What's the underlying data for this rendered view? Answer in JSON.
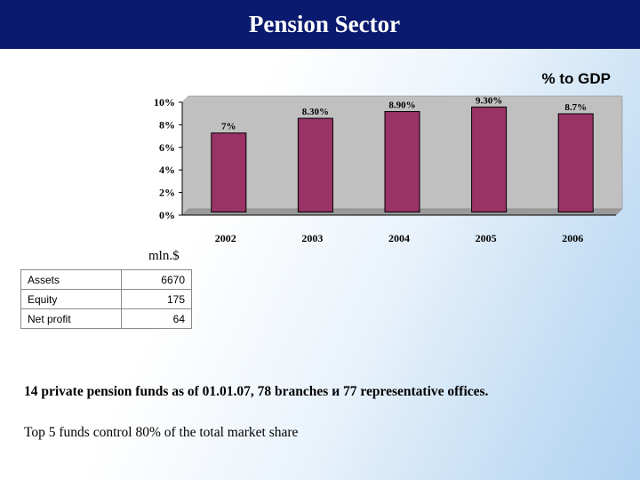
{
  "page": {
    "title": "Pension Sector"
  },
  "chart_data": {
    "type": "bar",
    "title": "% to GDP",
    "categories": [
      "2002",
      "2003",
      "2004",
      "2005",
      "2006"
    ],
    "values": [
      7,
      8.3,
      8.9,
      9.3,
      8.7
    ],
    "data_labels": [
      "7%",
      "8.30%",
      "8.90%",
      "9.30%",
      "8.7%"
    ],
    "ylim": [
      0,
      10
    ],
    "yticks": [
      0,
      2,
      4,
      6,
      8,
      10
    ],
    "ytick_labels": [
      "0%",
      "2%",
      "4%",
      "6%",
      "8%",
      "10%"
    ],
    "grid": false,
    "colors": {
      "bar": "#993366",
      "bar_stroke": "#000000",
      "plot_area": "#c0c0c0",
      "wall": "#9a9a9a"
    }
  },
  "unit_label": "mln.$",
  "metrics": [
    {
      "label": "Assets",
      "value": "6670"
    },
    {
      "label": "Equity",
      "value": "175"
    },
    {
      "label": "Net profit",
      "value": "64"
    }
  ],
  "notes": {
    "line1": "14 private pension funds as of 01.01.07, 78 branches и 77 representative offices.",
    "line2": "Top 5 funds control 80% of the total market share"
  }
}
